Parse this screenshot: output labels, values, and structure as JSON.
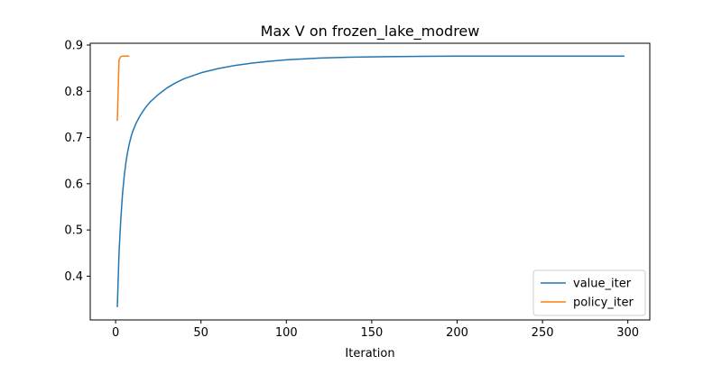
{
  "chart_data": {
    "type": "line",
    "title": "Max V on frozen_lake_modrew",
    "xlabel": "Iteration",
    "ylabel": "",
    "xlim": [
      -14.85,
      312.85
    ],
    "ylim": [
      0.3053,
      0.9039
    ],
    "xticks": [
      0,
      50,
      100,
      150,
      200,
      250,
      300
    ],
    "yticks": [
      0.4,
      0.5,
      0.6,
      0.7,
      0.8,
      0.9
    ],
    "xtick_labels": [
      "0",
      "50",
      "100",
      "150",
      "200",
      "250",
      "300"
    ],
    "ytick_labels": [
      "0.4",
      "0.5",
      "0.6",
      "0.7",
      "0.8",
      "0.9"
    ],
    "grid": false,
    "legend_position": "lower-right",
    "series": [
      {
        "name": "value_iter",
        "color": "#1f77b4",
        "x": [
          1,
          2,
          3,
          4,
          5,
          6,
          7,
          8,
          9,
          10,
          12,
          14,
          16,
          18,
          20,
          25,
          30,
          35,
          40,
          50,
          60,
          70,
          80,
          90,
          100,
          120,
          140,
          160,
          180,
          200,
          230,
          260,
          298
        ],
        "y": [
          0.333,
          0.45,
          0.52,
          0.576,
          0.615,
          0.645,
          0.668,
          0.686,
          0.701,
          0.713,
          0.731,
          0.745,
          0.757,
          0.767,
          0.776,
          0.793,
          0.807,
          0.818,
          0.827,
          0.84,
          0.849,
          0.856,
          0.861,
          0.865,
          0.868,
          0.872,
          0.874,
          0.875,
          0.8756,
          0.876,
          0.876,
          0.876,
          0.876
        ]
      },
      {
        "name": "policy_iter",
        "color": "#ff7f0e",
        "x": [
          1,
          2,
          3,
          4,
          5,
          6,
          7,
          8
        ],
        "y": [
          0.736,
          0.868,
          0.875,
          0.876,
          0.876,
          0.876,
          0.876,
          0.876
        ]
      }
    ]
  }
}
